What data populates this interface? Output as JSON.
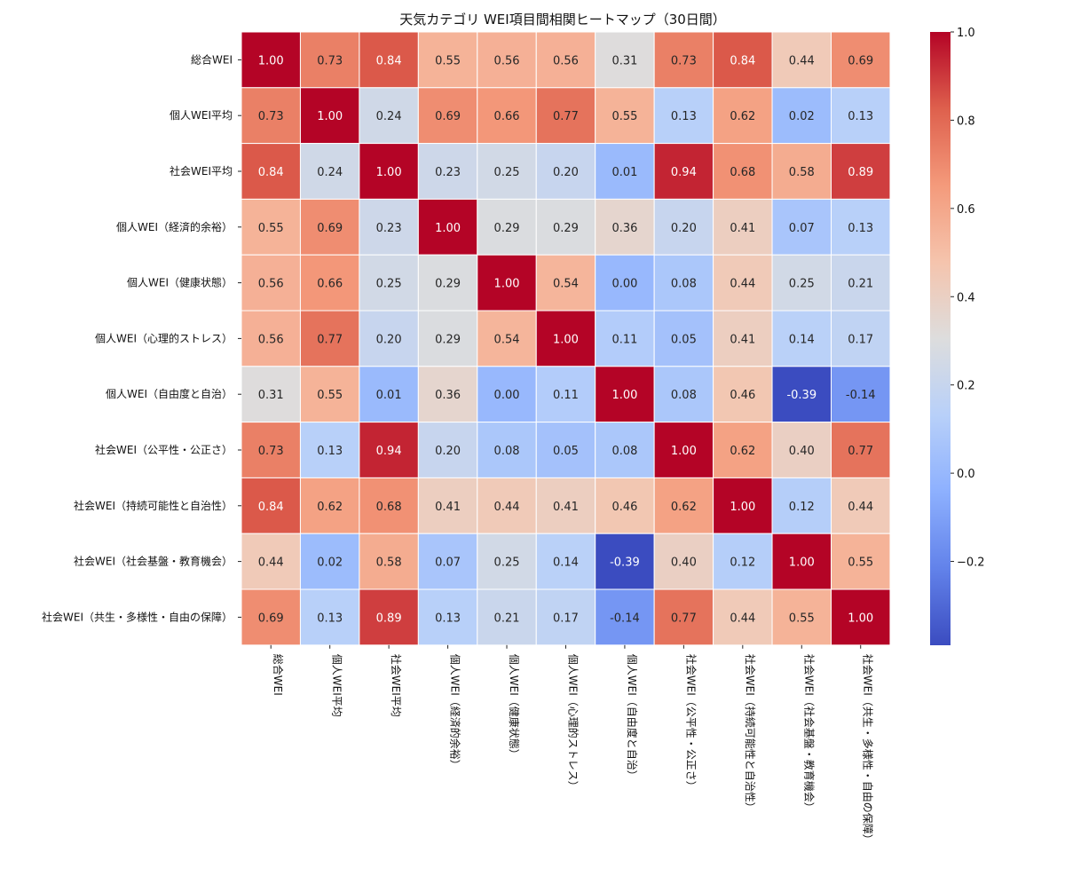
{
  "chart_data": {
    "type": "heatmap",
    "title": "天気カテゴリ WEI項目間相関ヒートマップ（30日間）",
    "labels": [
      "総合WEI",
      "個人WEI平均",
      "社会WEI平均",
      "個人WEI（経済的余裕）",
      "個人WEI（健康状態）",
      "個人WEI（心理的ストレス）",
      "個人WEI（自由度と自治）",
      "社会WEI（公平性・公正さ）",
      "社会WEI（持続可能性と自治性）",
      "社会WEI（社会基盤・教育機会）",
      "社会WEI（共生・多様性・自由の保障）"
    ],
    "values": [
      [
        1.0,
        0.73,
        0.84,
        0.55,
        0.56,
        0.56,
        0.31,
        0.73,
        0.84,
        0.44,
        0.69
      ],
      [
        0.73,
        1.0,
        0.24,
        0.69,
        0.66,
        0.77,
        0.55,
        0.13,
        0.62,
        0.02,
        0.13
      ],
      [
        0.84,
        0.24,
        1.0,
        0.23,
        0.25,
        0.2,
        0.01,
        0.94,
        0.68,
        0.58,
        0.89
      ],
      [
        0.55,
        0.69,
        0.23,
        1.0,
        0.29,
        0.29,
        0.36,
        0.2,
        0.41,
        0.07,
        0.13
      ],
      [
        0.56,
        0.66,
        0.25,
        0.29,
        1.0,
        0.54,
        0.0,
        0.08,
        0.44,
        0.25,
        0.21
      ],
      [
        0.56,
        0.77,
        0.2,
        0.29,
        0.54,
        1.0,
        0.11,
        0.05,
        0.41,
        0.14,
        0.17
      ],
      [
        0.31,
        0.55,
        0.01,
        0.36,
        0.0,
        0.11,
        1.0,
        0.08,
        0.46,
        -0.39,
        -0.14
      ],
      [
        0.73,
        0.13,
        0.94,
        0.2,
        0.08,
        0.05,
        0.08,
        1.0,
        0.62,
        0.4,
        0.77
      ],
      [
        0.84,
        0.62,
        0.68,
        0.41,
        0.44,
        0.41,
        0.46,
        0.62,
        1.0,
        0.12,
        0.44
      ],
      [
        0.44,
        0.02,
        0.58,
        0.07,
        0.25,
        0.14,
        -0.39,
        0.4,
        0.12,
        1.0,
        0.55
      ],
      [
        0.69,
        0.13,
        0.89,
        0.13,
        0.21,
        0.17,
        -0.14,
        0.77,
        0.44,
        0.55,
        1.0
      ]
    ],
    "value_format": "2 decimals",
    "colormap": "coolwarm",
    "vmin": -0.39,
    "vmax": 1.0,
    "colorbar_ticks": [
      1.0,
      0.8,
      0.6,
      0.4,
      0.2,
      0.0,
      -0.2
    ],
    "colorbar_tick_labels": [
      "1.0",
      "0.8",
      "0.6",
      "0.4",
      "0.2",
      "0.0",
      "−0.2"
    ],
    "grid": false,
    "legend": "colorbar-right"
  },
  "colors": {
    "low": "#3b4cc0",
    "mid": "#dddddd",
    "high": "#b40426",
    "cell_border": "#ffffff"
  }
}
